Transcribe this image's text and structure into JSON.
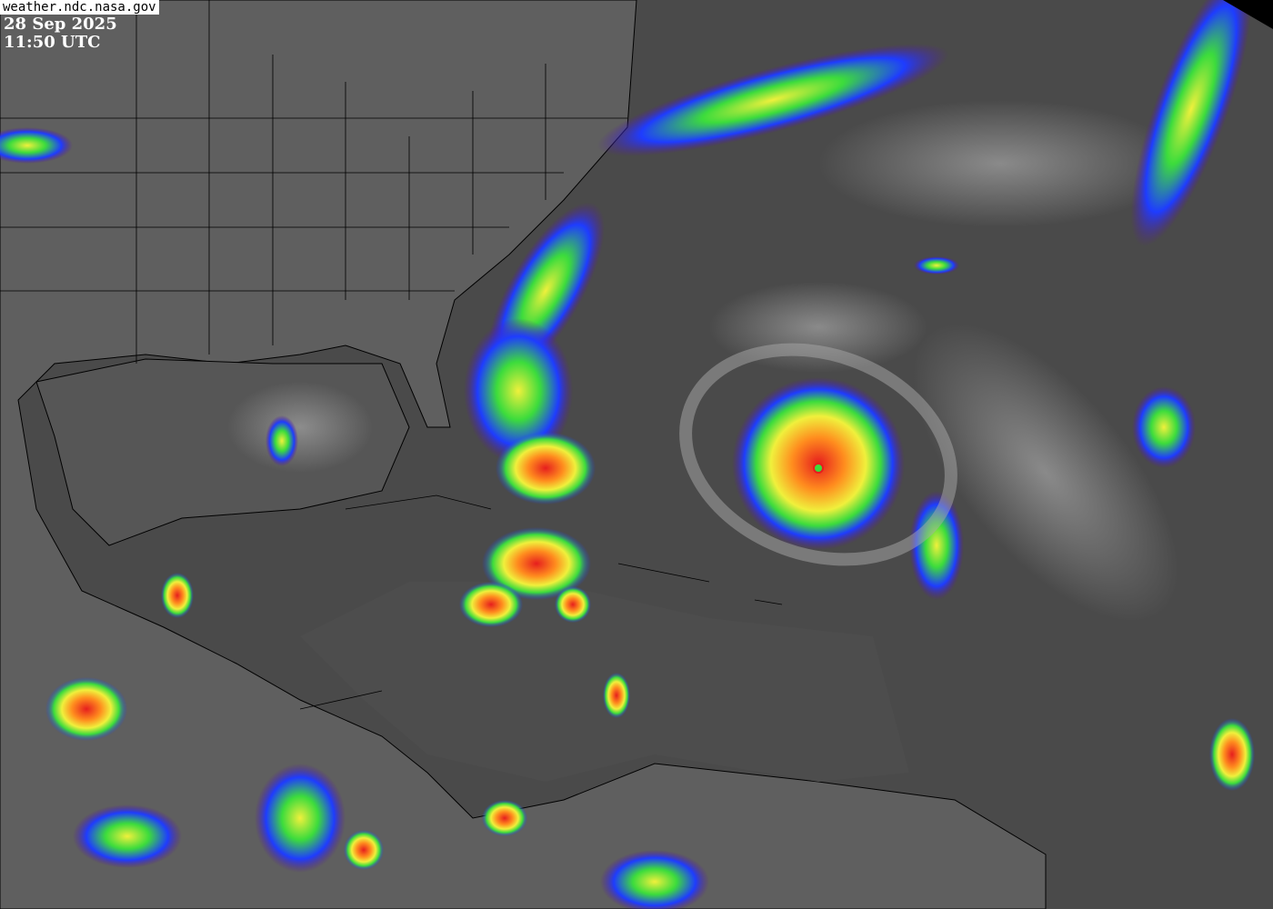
{
  "overlay": {
    "source": "weather.ndc.nasa.gov",
    "date": "28 Sep 2025",
    "time": "11:50 UTC"
  },
  "colors": {
    "background_gray": "#4a4a4a",
    "land_gray": "#6a6a6a",
    "cloud_purple": "#5a189a",
    "cloud_blue": "#1e3cff",
    "cloud_green": "#3cdc3c",
    "cloud_yellow": "#f0f03c",
    "cloud_orange": "#ff8c1e",
    "cloud_red": "#e61e1e",
    "coastline": "#000000"
  }
}
